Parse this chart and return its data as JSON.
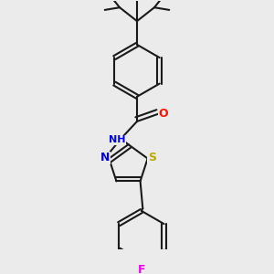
{
  "background_color": "#ebebeb",
  "bond_color": "#1a1a1a",
  "N_color": "#0000ee",
  "S_color": "#bbaa00",
  "O_color": "#ff1100",
  "F_color": "#ee00ee",
  "H_color": "#888888",
  "line_width": 1.5,
  "figsize": [
    3.0,
    3.0
  ],
  "dpi": 100,
  "xlim": [
    0.1,
    0.9
  ],
  "ylim": [
    0.02,
    1.02
  ]
}
